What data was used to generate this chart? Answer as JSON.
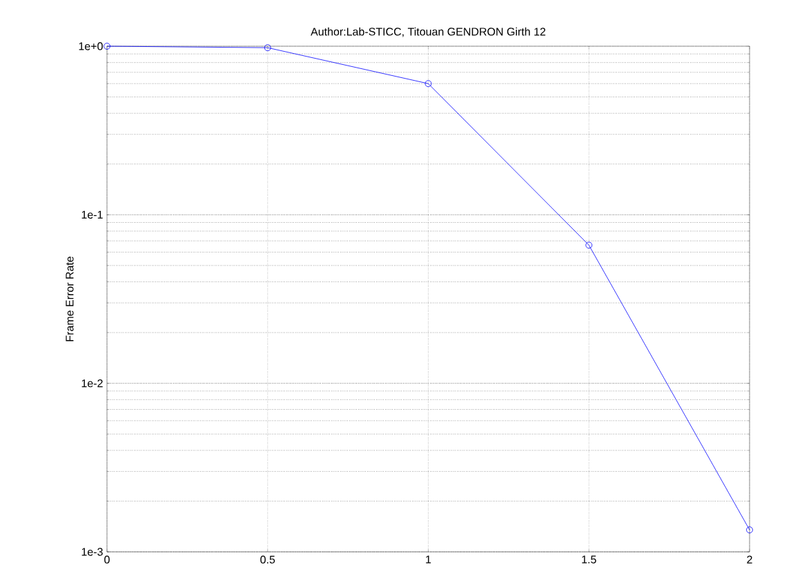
{
  "chart_data": {
    "type": "line",
    "title": "Author:Lab-STICC, Titouan GENDRON Girth 12",
    "ylabel": "Frame Error Rate",
    "x": [
      0,
      0.5,
      1,
      1.5,
      2
    ],
    "series": [
      {
        "color": "#0000ff",
        "values": [
          1.0,
          0.98,
          0.6,
          0.066,
          0.00135
        ]
      }
    ],
    "xlim": [
      0,
      2
    ],
    "xticks": [
      0,
      0.5,
      1,
      1.5,
      2
    ],
    "ylim": [
      0.001,
      1
    ],
    "yticks": [
      {
        "value": 0.001,
        "label": "1e-3"
      },
      {
        "value": 0.01,
        "label": "1e-2"
      },
      {
        "value": 0.1,
        "label": "1e-1"
      },
      {
        "value": 1,
        "label": "1e+0"
      }
    ],
    "log": "y",
    "grid": true,
    "marker": "circle",
    "line_style": "solid"
  }
}
